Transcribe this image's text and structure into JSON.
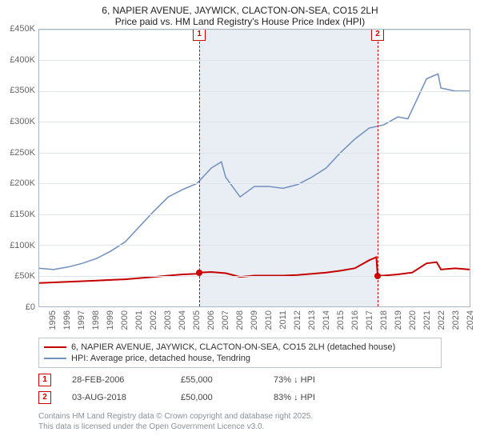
{
  "title_line1": "6, NAPIER AVENUE, JAYWICK, CLACTON-ON-SEA, CO15 2LH",
  "title_line2": "Price paid vs. HM Land Registry's House Price Index (HPI)",
  "chart": {
    "type": "line",
    "y": {
      "min": 0,
      "max": 450000,
      "step": 50000,
      "prefix": "£",
      "suffix_thousands": "K"
    },
    "x": {
      "min": 1995,
      "max": 2025,
      "step": 1
    },
    "grid_color": "#dfe4e8",
    "border_color": "#a9b6c2",
    "shade_band": {
      "from": 2006.16,
      "to": 2018.59,
      "color": "#e9eef5"
    },
    "series": [
      {
        "name_line1": "6, NAPIER AVENUE, JAYWICK, CLACTON-ON-SEA, CO15 2LH (detached house)",
        "color": "#c40000",
        "width": 2,
        "points": [
          [
            1995,
            38000
          ],
          [
            1996,
            39000
          ],
          [
            1997,
            40000
          ],
          [
            1998,
            41000
          ],
          [
            1999,
            42000
          ],
          [
            2000,
            43000
          ],
          [
            2001,
            44000
          ],
          [
            2002,
            46000
          ],
          [
            2003,
            48000
          ],
          [
            2004,
            50000
          ],
          [
            2005,
            52000
          ],
          [
            2006,
            53000
          ],
          [
            2006.16,
            55000
          ],
          [
            2007,
            56000
          ],
          [
            2008,
            54000
          ],
          [
            2009,
            48000
          ],
          [
            2010,
            50000
          ],
          [
            2011,
            50000
          ],
          [
            2012,
            50000
          ],
          [
            2013,
            51000
          ],
          [
            2014,
            53000
          ],
          [
            2015,
            55000
          ],
          [
            2016,
            58000
          ],
          [
            2017,
            62000
          ],
          [
            2018,
            75000
          ],
          [
            2018.5,
            80000
          ],
          [
            2018.59,
            50000
          ],
          [
            2019,
            50000
          ],
          [
            2020,
            52000
          ],
          [
            2021,
            55000
          ],
          [
            2022,
            70000
          ],
          [
            2022.7,
            72000
          ],
          [
            2023,
            60000
          ],
          [
            2024,
            62000
          ],
          [
            2025,
            60000
          ]
        ],
        "sale_dots": [
          [
            2006.16,
            55000
          ],
          [
            2018.59,
            50000
          ]
        ]
      },
      {
        "name_line1": "HPI: Average price, detached house, Tendring",
        "color": "#6f8fbf",
        "width": 1.5,
        "points": [
          [
            1995,
            62000
          ],
          [
            1996,
            60000
          ],
          [
            1997,
            64000
          ],
          [
            1998,
            70000
          ],
          [
            1999,
            78000
          ],
          [
            2000,
            90000
          ],
          [
            2001,
            105000
          ],
          [
            2002,
            130000
          ],
          [
            2003,
            155000
          ],
          [
            2004,
            178000
          ],
          [
            2005,
            190000
          ],
          [
            2006,
            200000
          ],
          [
            2007,
            225000
          ],
          [
            2007.7,
            235000
          ],
          [
            2008,
            210000
          ],
          [
            2009,
            178000
          ],
          [
            2010,
            195000
          ],
          [
            2011,
            195000
          ],
          [
            2012,
            192000
          ],
          [
            2013,
            198000
          ],
          [
            2014,
            210000
          ],
          [
            2015,
            225000
          ],
          [
            2016,
            250000
          ],
          [
            2017,
            272000
          ],
          [
            2018,
            290000
          ],
          [
            2019,
            295000
          ],
          [
            2020,
            308000
          ],
          [
            2020.7,
            305000
          ],
          [
            2021,
            320000
          ],
          [
            2022,
            370000
          ],
          [
            2022.8,
            378000
          ],
          [
            2023,
            355000
          ],
          [
            2024,
            350000
          ],
          [
            2025,
            350000
          ]
        ]
      }
    ],
    "markers": [
      {
        "n": "1",
        "x": 2006.16
      },
      {
        "n": "2",
        "x": 2018.59
      }
    ]
  },
  "legend": {
    "rows": [
      {
        "color": "#c40000",
        "label": "6, NAPIER AVENUE, JAYWICK, CLACTON-ON-SEA, CO15 2LH (detached house)"
      },
      {
        "color": "#6f8fbf",
        "label": "HPI: Average price, detached house, Tendring"
      }
    ]
  },
  "sales": [
    {
      "n": "1",
      "date": "28-FEB-2006",
      "price": "£55,000",
      "delta": "73% ↓ HPI"
    },
    {
      "n": "2",
      "date": "03-AUG-2018",
      "price": "£50,000",
      "delta": "83% ↓ HPI"
    }
  ],
  "footer_line1": "Contains HM Land Registry data © Crown copyright and database right 2025.",
  "footer_line2": "This data is licensed under the Open Government Licence v3.0."
}
